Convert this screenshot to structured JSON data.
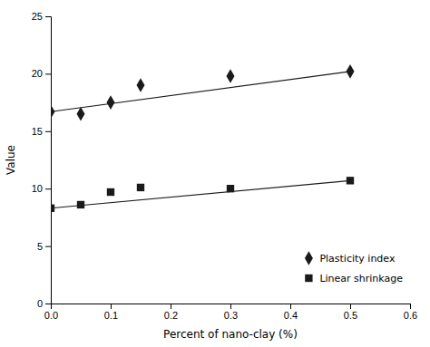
{
  "chart_data": {
    "type": "scatter",
    "xlabel": "Percent of nano-clay (%)",
    "ylabel": "Value",
    "xlim": [
      0,
      0.6
    ],
    "ylim": [
      0,
      25
    ],
    "xticks": [
      {
        "value": 0,
        "label": "0.0"
      },
      0.1,
      0.2,
      0.3,
      0.4,
      0.5,
      0.6
    ],
    "yticks": [
      0,
      5,
      10,
      15,
      20,
      25
    ],
    "grid": false,
    "legend": "lower right",
    "series": [
      {
        "name": "Plasticity index",
        "type": "scatter",
        "marker": "diamond",
        "color": "#1a1a1a",
        "x": [
          0,
          0.05,
          0.1,
          0.15,
          0.3,
          0.5
        ],
        "values": [
          16.7,
          16.5,
          17.5,
          19.0,
          19.8,
          20.2
        ]
      },
      {
        "name": "Linear shrinkage",
        "type": "scatter",
        "marker": "square",
        "color": "#1a1a1a",
        "x": [
          0,
          0.05,
          0.1,
          0.15,
          0.3,
          0.5
        ],
        "values": [
          8.3,
          8.6,
          9.7,
          10.1,
          10.0,
          10.7
        ]
      },
      {
        "type": "line",
        "color": "#1a1a1a",
        "x": [
          0,
          0.5
        ],
        "values": [
          16.7,
          20.2
        ]
      },
      {
        "type": "line",
        "color": "#1a1a1a",
        "x": [
          0,
          0.5
        ],
        "values": [
          8.3,
          10.7
        ]
      }
    ]
  }
}
